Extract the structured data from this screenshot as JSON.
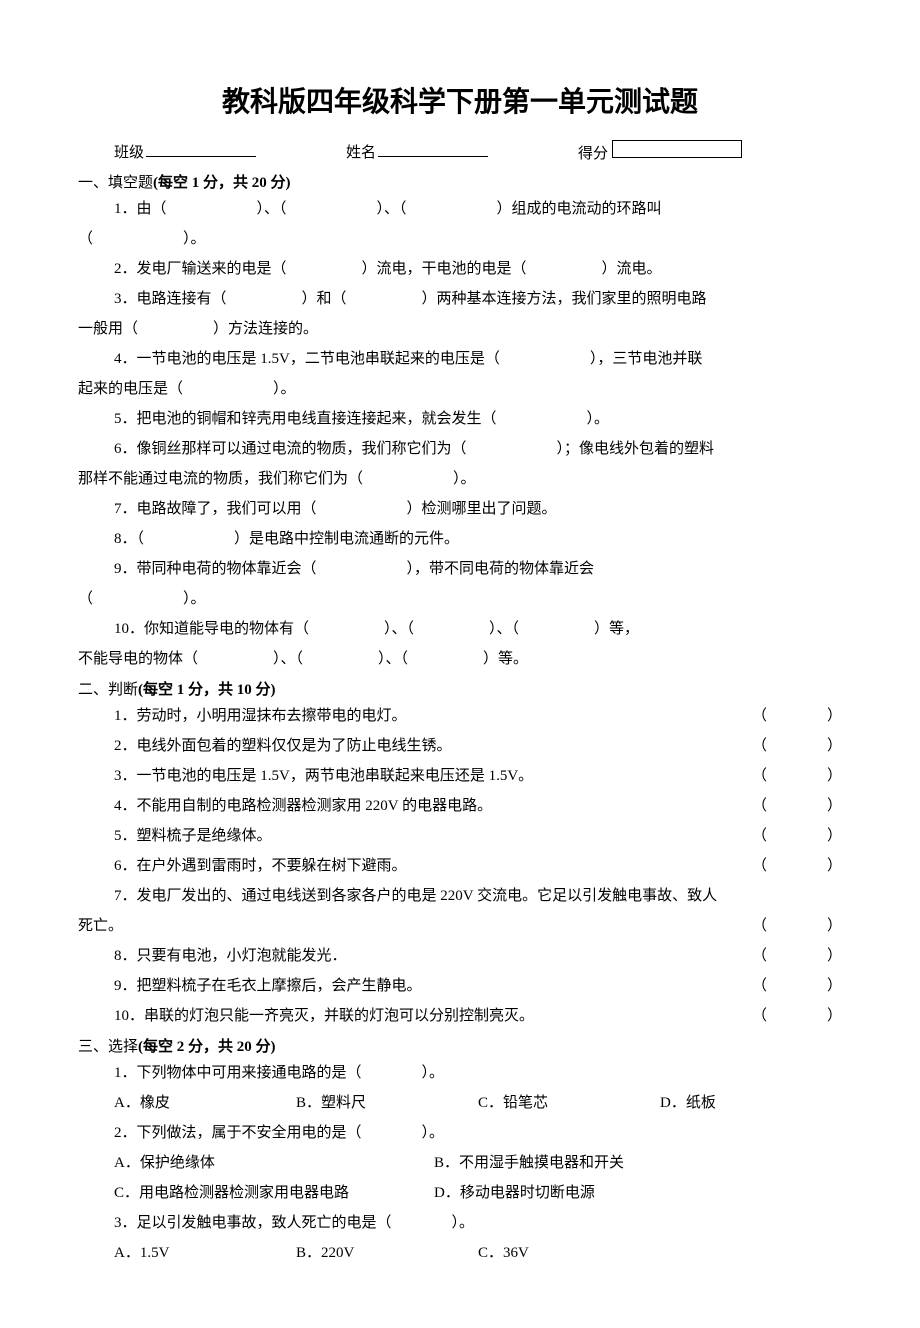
{
  "title": "教科版四年级科学下册第一单元测试题",
  "header": {
    "class_label": "班级",
    "name_label": "姓名",
    "score_label": "得分"
  },
  "sec1": {
    "heading_prefix": "一、填空题",
    "heading_rest": "(每空 1 分，共 20 分)",
    "q1a": "1．由（　　　　　　）、（　　　　　　）、（　　　　　　）组成的电流动的环路叫",
    "q1b": "（　　　　　　）。",
    "q2": "2．发电厂输送来的电是（　　　　　）流电，干电池的电是（　　　　　）流电。",
    "q3a": "3．电路连接有（　　　　　）和（　　　　　）两种基本连接方法，我们家里的照明电路",
    "q3b": "一般用（　　　　　）方法连接的。",
    "q4a": "4．一节电池的电压是 1.5V，二节电池串联起来的电压是（　　　　　　），三节电池并联",
    "q4b": "起来的电压是（　　　　　　）。",
    "q5": "5．把电池的铜帽和锌壳用电线直接连接起来，就会发生（　　　　　　）。",
    "q6a": "6．像铜丝那样可以通过电流的物质，我们称它们为（　　　　　　）；像电线外包着的塑料",
    "q6b": "那样不能通过电流的物质，我们称它们为（　　　　　　）。",
    "q7": "7．电路故障了，我们可以用（　　　　　　）检测哪里出了问题。",
    "q8": "8．（　　　　　　）是电路中控制电流通断的元件。",
    "q9a": "9．带同种电荷的物体靠近会（　　　　　　），带不同电荷的物体靠近会",
    "q9b": "（　　　　　　）。",
    "q10a": "10．你知道能导电的物体有（　　　　　）、（　　　　　）、（　　　　　）等，",
    "q10b": "不能导电的物体（　　　　　）、（　　　　　）、（　　　　　）等。"
  },
  "sec2": {
    "heading_prefix": "二、判断",
    "heading_rest": "(每空 1 分，共 10 分)",
    "items": [
      "1．劳动时，小明用湿抹布去擦带电的电灯。",
      "2．电线外面包着的塑料仅仅是为了防止电线生锈。",
      "3．一节电池的电压是 1.5V，两节电池串联起来电压还是 1.5V。",
      "4．不能用自制的电路检测器检测家用 220V 的电器电路。",
      "5．塑料梳子是绝缘体。",
      "6．在户外遇到雷雨时，不要躲在树下避雨。"
    ],
    "q7a": "7．发电厂发出的、通过电线送到各家各户的电是 220V 交流电。它足以引发触电事故、致人",
    "q7b": "死亡。",
    "items_tail": [
      "8．只要有电池，小灯泡就能发光．",
      "9．把塑料梳子在毛衣上摩擦后，会产生静电。",
      "10．串联的灯泡只能一齐亮灭，并联的灯泡可以分别控制亮灭。"
    ],
    "paren_open": "（",
    "paren_close": "）"
  },
  "sec3": {
    "heading_prefix": "三、选择",
    "heading_rest": "(每空 2 分，共 20 分)",
    "q1": "1．下列物体中可用来接通电路的是（　　　　）。",
    "q1_opts": [
      "A．橡皮",
      "B．塑料尺",
      "C．铅笔芯",
      "D．纸板"
    ],
    "q2": "2．下列做法，属于不安全用电的是（　　　　）。",
    "q2_opts_row1": [
      "A．保护绝缘体",
      "B．不用湿手触摸电器和开关"
    ],
    "q2_opts_row2": [
      "C．用电路检测器检测家用电器电路",
      "D．移动电器时切断电源"
    ],
    "q3": "3．足以引发触电事故，致人死亡的电是（　　　　）。",
    "q3_opts": [
      "A．1.5V",
      "B．220V",
      "C．36V"
    ]
  }
}
